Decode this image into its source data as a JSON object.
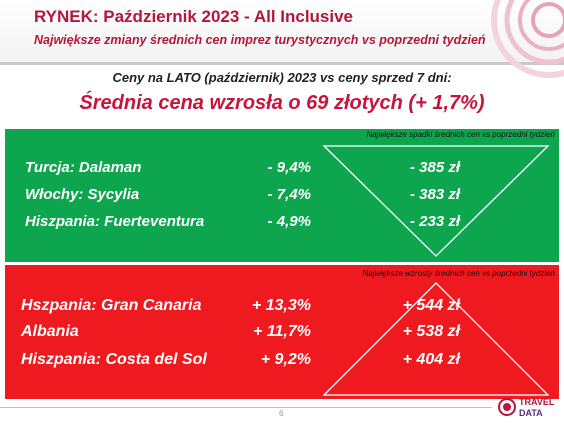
{
  "header": {
    "title": "RYNEK: Październik 2023 - All Inclusive",
    "subtitle": "Największe zmiany średnich cen imprez turystycznych vs poprzedni tydzień"
  },
  "comparison": {
    "line": "Ceny na LATO (październik) 2023 vs ceny sprzed 7 dni:",
    "headline": "Średnia cena wzrosła o 69 złotych (+ 1,7%)"
  },
  "decreases": {
    "caption": "Największe spadki średnich cen vs poprzedni tydzień",
    "color": "#0da64f",
    "rows": [
      {
        "destination": "Turcja: Dalaman",
        "percent": "- 9,4%",
        "amount": "- 385 zł"
      },
      {
        "destination": "Włochy: Sycylia",
        "percent": "- 7,4%",
        "amount": "- 383 zł"
      },
      {
        "destination": "Hiszpania: Fuerteventura",
        "percent": "- 4,9%",
        "amount": "- 233 zł"
      }
    ]
  },
  "increases": {
    "caption": "Największe wzrosty średnich cen vs poprzedni tydzień",
    "color": "#ef1a1f",
    "rows": [
      {
        "destination": "Hszpania: Gran Canaria",
        "percent": "+ 13,3%",
        "amount": "+ 544 zł"
      },
      {
        "destination": "Albania",
        "percent": "+ 11,7%",
        "amount": "+ 538 zł"
      },
      {
        "destination": "Hiszpania: Costa del Sol",
        "percent": "+ 9,2%",
        "amount": "+ 404 zł"
      }
    ]
  },
  "footer": {
    "page_number": "6",
    "logo_top": "TRAVEL",
    "logo_bottom": "DATA"
  },
  "icons": {
    "decrease_marker": "down-triangle-icon",
    "increase_marker": "up-triangle-icon"
  }
}
